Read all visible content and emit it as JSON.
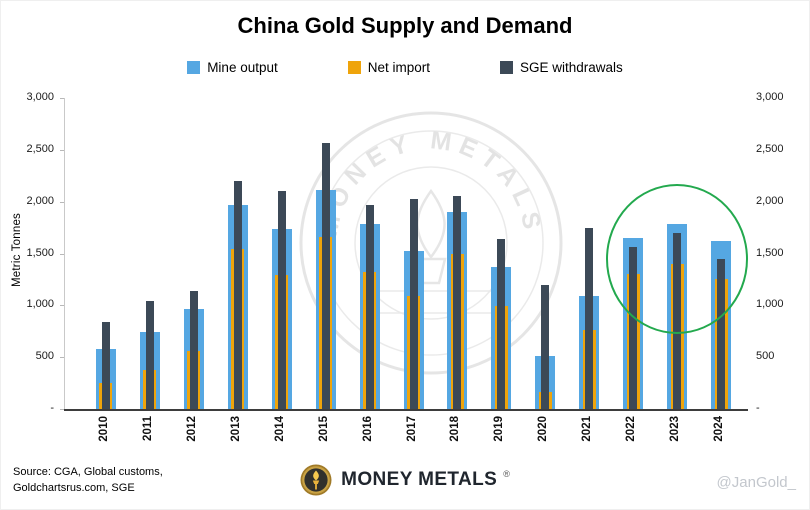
{
  "chart_data": {
    "type": "bar",
    "title": "China Gold Supply and Demand",
    "ylabel": "Metric Tonnes",
    "ylim": [
      0,
      3000
    ],
    "ytick_step": 500,
    "yticks": [
      "-",
      "500",
      "1,000",
      "1,500",
      "2,000",
      "2,500",
      "3,000"
    ],
    "categories": [
      "2010",
      "2011",
      "2012",
      "2013",
      "2014",
      "2015",
      "2016",
      "2017",
      "2018",
      "2019",
      "2020",
      "2021",
      "2022",
      "2023",
      "2024"
    ],
    "series": [
      {
        "name": "Mine output",
        "color": "#55A7E2",
        "role": "stacked-top",
        "values": [
          330,
          360,
          400,
          430,
          450,
          450,
          460,
          430,
          400,
          380,
          350,
          330,
          350,
          380,
          370
        ]
      },
      {
        "name": "Net import",
        "color": "#EFA40B",
        "role": "stacked-base",
        "values": [
          250,
          380,
          560,
          1540,
          1290,
          1660,
          1320,
          1090,
          1500,
          990,
          160,
          760,
          1300,
          1400,
          1250
        ]
      },
      {
        "name": "SGE withdrawals",
        "color": "#3C4957",
        "role": "overlay",
        "values": [
          840,
          1040,
          1140,
          2200,
          2100,
          2570,
          1970,
          2030,
          2055,
          1640,
          1200,
          1750,
          1560,
          1700,
          1450
        ]
      }
    ],
    "legend_position": "top",
    "grid": false,
    "annotation": {
      "shape": "circle",
      "color": "#23A94E",
      "circled_years": [
        "2022",
        "2023",
        "2024"
      ],
      "center_value": 1450
    }
  },
  "watermark": {
    "arc_text": "MONEY METALS"
  },
  "footer": {
    "source": [
      "Source: CGA, Global customs,",
      "Goldchartsrus.com, SGE"
    ],
    "brand": "MONEY METALS",
    "registered_mark": "®",
    "handle": "@JanGold_"
  }
}
